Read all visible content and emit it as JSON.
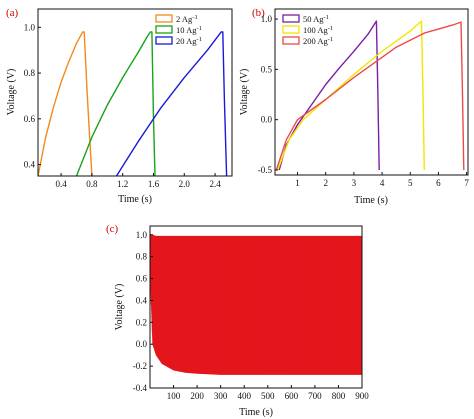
{
  "chart_data": [
    {
      "panel": "(a)",
      "type": "line",
      "xlabel": "Time (s)",
      "ylabel": "Voltage (V)",
      "xlim": [
        0.1,
        2.62
      ],
      "ylim": [
        0.35,
        1.08
      ],
      "xticks": [
        0.4,
        0.8,
        1.2,
        1.6,
        2.0,
        2.4
      ],
      "xtick_labels": [
        "0.4",
        "0.8",
        "1.2",
        "1.6",
        "2.0",
        "2.4"
      ],
      "yticks": [
        0.4,
        0.6,
        0.8,
        1.0
      ],
      "ytick_labels": [
        "0.4",
        "0.6",
        "0.8",
        "1.0"
      ],
      "legend_position": "top-right",
      "series": [
        {
          "name": "2 Ag",
          "superscript": "-1",
          "color": "#f28a1e",
          "x": [
            0.1,
            0.2,
            0.3,
            0.4,
            0.5,
            0.6,
            0.68,
            0.7,
            0.74,
            0.8
          ],
          "y": [
            0.35,
            0.52,
            0.65,
            0.76,
            0.85,
            0.93,
            0.98,
            0.98,
            0.7,
            0.35
          ]
        },
        {
          "name": "10 Ag",
          "superscript": "-1",
          "color": "#1aa21a",
          "x": [
            0.6,
            0.8,
            1.0,
            1.2,
            1.4,
            1.52,
            1.56,
            1.58,
            1.6,
            1.62
          ],
          "y": [
            0.35,
            0.52,
            0.66,
            0.78,
            0.89,
            0.96,
            0.98,
            0.98,
            0.6,
            0.35
          ]
        },
        {
          "name": "20 Ag",
          "superscript": "-1",
          "color": "#1a1ad6",
          "x": [
            1.12,
            1.4,
            1.7,
            2.0,
            2.3,
            2.48,
            2.5,
            2.52,
            2.55
          ],
          "y": [
            0.35,
            0.5,
            0.65,
            0.78,
            0.9,
            0.98,
            0.98,
            0.7,
            0.35
          ]
        }
      ]
    },
    {
      "panel": "(b)",
      "type": "line",
      "xlabel": "Time (s)",
      "ylabel": "Voltage (V)",
      "xlim": [
        0.2,
        7.05
      ],
      "ylim": [
        -0.55,
        1.1
      ],
      "xticks": [
        1,
        2,
        3,
        4,
        5,
        6,
        7
      ],
      "xtick_labels": [
        "1",
        "2",
        "3",
        "4",
        "5",
        "6",
        "7"
      ],
      "yticks": [
        -0.5,
        0.0,
        0.5,
        1.0
      ],
      "ytick_labels": [
        "-0.5",
        "0.0",
        "0.5",
        "1.0"
      ],
      "legend_position": "top-left",
      "series": [
        {
          "name": "50 Ag",
          "superscript": "-1",
          "color": "#7a1fa2",
          "x": [
            0.35,
            0.6,
            1.0,
            1.5,
            2.0,
            2.5,
            3.0,
            3.5,
            3.8,
            3.85,
            3.9
          ],
          "y": [
            -0.5,
            -0.25,
            -0.05,
            0.15,
            0.35,
            0.52,
            0.68,
            0.85,
            0.98,
            0.3,
            -0.5
          ]
        },
        {
          "name": "100 Ag",
          "superscript": "-1",
          "color": "#f2e600",
          "x": [
            0.3,
            0.7,
            1.2,
            2.0,
            3.0,
            4.0,
            4.5,
            5.0,
            5.4,
            5.45,
            5.5
          ],
          "y": [
            -0.5,
            -0.2,
            0.0,
            0.2,
            0.45,
            0.68,
            0.78,
            0.88,
            0.98,
            0.3,
            -0.5
          ]
        },
        {
          "name": "200 Ag",
          "superscript": "-1",
          "color": "#ec4a4a",
          "x": [
            0.25,
            0.6,
            1.0,
            2.0,
            3.0,
            4.0,
            4.5,
            5.5,
            6.5,
            6.8,
            6.85,
            6.9
          ],
          "y": [
            -0.5,
            -0.2,
            0.0,
            0.2,
            0.42,
            0.62,
            0.72,
            0.86,
            0.94,
            0.97,
            0.3,
            -0.5
          ]
        }
      ]
    },
    {
      "panel": "(c)",
      "type": "area",
      "xlabel": "Time (s)",
      "ylabel": "Voltage (V)",
      "xlim": [
        0,
        900
      ],
      "ylim": [
        -0.4,
        1.08
      ],
      "xticks": [
        100,
        200,
        300,
        400,
        500,
        600,
        700,
        800,
        900
      ],
      "xtick_labels": [
        "100",
        "200",
        "300",
        "400",
        "500",
        "600",
        "700",
        "800",
        "900"
      ],
      "yticks": [
        -0.4,
        -0.2,
        0.0,
        0.2,
        0.4,
        0.6,
        0.8,
        1.0
      ],
      "ytick_labels": [
        "-0.4",
        "-0.2",
        "0.0",
        "0.2",
        "0.4",
        "0.6",
        "0.8",
        "1.0"
      ],
      "color": "#ee1c24",
      "series": [
        {
          "name": "",
          "x": [
            0,
            10,
            25,
            50,
            100,
            150,
            200,
            300,
            400,
            500,
            600,
            700,
            800,
            900
          ],
          "upper": [
            1.0,
            1.0,
            0.99,
            0.99,
            0.99,
            0.99,
            0.99,
            0.99,
            0.99,
            0.99,
            0.99,
            0.99,
            0.99,
            0.99
          ],
          "lower": [
            0.6,
            0.0,
            -0.1,
            -0.18,
            -0.24,
            -0.26,
            -0.27,
            -0.28,
            -0.28,
            -0.28,
            -0.28,
            -0.28,
            -0.28,
            -0.28
          ]
        }
      ]
    }
  ]
}
